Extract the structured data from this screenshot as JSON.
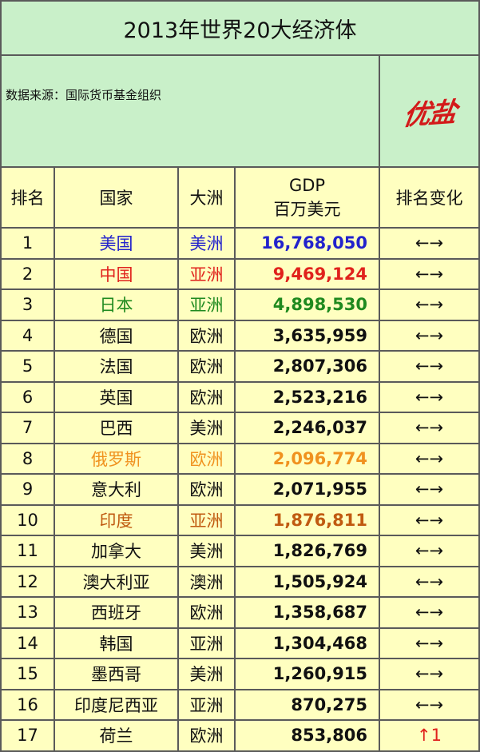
{
  "title": "2013年世界20大经济体",
  "source_text": "数据来源：国际货币基金组织",
  "logo_text": "优盐",
  "headers": {
    "rank": "排名",
    "country": "国家",
    "continent": "大洲",
    "gdp_line1": "GDP",
    "gdp_line2": "百万美元",
    "change": "排名变化"
  },
  "rows": [
    {
      "rank": "1",
      "country": "美国",
      "continent": "美洲",
      "gdp": "16,768,050",
      "change": "←→",
      "color": "#2222cc"
    },
    {
      "rank": "2",
      "country": "中国",
      "continent": "亚洲",
      "gdp": "9,469,124",
      "change": "←→",
      "color": "#e0221c"
    },
    {
      "rank": "3",
      "country": "日本",
      "continent": "亚洲",
      "gdp": "4,898,530",
      "change": "←→",
      "color": "#1f8a1f"
    },
    {
      "rank": "4",
      "country": "德国",
      "continent": "欧洲",
      "gdp": "3,635,959",
      "change": "←→",
      "color": "#111111"
    },
    {
      "rank": "5",
      "country": "法国",
      "continent": "欧洲",
      "gdp": "2,807,306",
      "change": "←→",
      "color": "#111111"
    },
    {
      "rank": "6",
      "country": "英国",
      "continent": "欧洲",
      "gdp": "2,523,216",
      "change": "←→",
      "color": "#111111"
    },
    {
      "rank": "7",
      "country": "巴西",
      "continent": "美洲",
      "gdp": "2,246,037",
      "change": "←→",
      "color": "#111111"
    },
    {
      "rank": "8",
      "country": "俄罗斯",
      "continent": "欧洲",
      "gdp": "2,096,774",
      "change": "←→",
      "color": "#f0921f"
    },
    {
      "rank": "9",
      "country": "意大利",
      "continent": "欧洲",
      "gdp": "2,071,955",
      "change": "←→",
      "color": "#111111"
    },
    {
      "rank": "10",
      "country": "印度",
      "continent": "亚洲",
      "gdp": "1,876,811",
      "change": "←→",
      "color": "#c05a10"
    },
    {
      "rank": "11",
      "country": "加拿大",
      "continent": "美洲",
      "gdp": "1,826,769",
      "change": "←→",
      "color": "#111111"
    },
    {
      "rank": "12",
      "country": "澳大利亚",
      "continent": "澳洲",
      "gdp": "1,505,924",
      "change": "←→",
      "color": "#111111"
    },
    {
      "rank": "13",
      "country": "西班牙",
      "continent": "欧洲",
      "gdp": "1,358,687",
      "change": "←→",
      "color": "#111111"
    },
    {
      "rank": "14",
      "country": "韩国",
      "continent": "亚洲",
      "gdp": "1,304,468",
      "change": "←→",
      "color": "#111111"
    },
    {
      "rank": "15",
      "country": "墨西哥",
      "continent": "美洲",
      "gdp": "1,260,915",
      "change": "←→",
      "color": "#111111"
    },
    {
      "rank": "16",
      "country": "印度尼西亚",
      "continent": "亚洲",
      "gdp": "870,275",
      "change": "←→",
      "color": "#111111"
    },
    {
      "rank": "17",
      "country": "荷兰",
      "continent": "欧洲",
      "gdp": "853,806",
      "change": "↑1",
      "change_color": "#e0221c",
      "color": "#111111"
    }
  ],
  "colors": {
    "header_bg": "#c9f0c9",
    "body_bg": "#ffffc0",
    "border": "#5a5a5a",
    "logo": "#d31a1a"
  }
}
